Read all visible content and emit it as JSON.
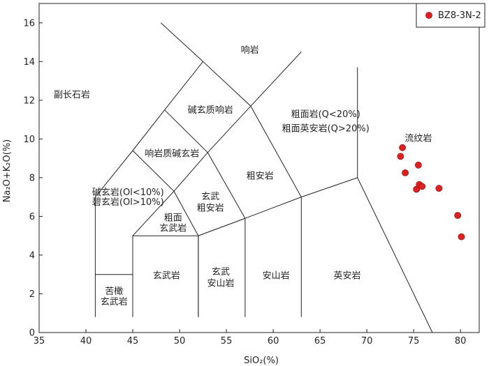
{
  "chart_data": {
    "type": "scatter",
    "title": "",
    "xlabel": "SiO₂(%)",
    "ylabel": "Na₂O+K₂O(%)",
    "xlim": [
      35,
      82
    ],
    "ylim": [
      0,
      17
    ],
    "xticks": [
      35,
      40,
      45,
      50,
      55,
      60,
      65,
      70,
      75,
      80
    ],
    "yticks": [
      0,
      2,
      4,
      6,
      8,
      10,
      12,
      14,
      16
    ],
    "grid": false,
    "legend_position": "top-right",
    "series": [
      {
        "name": "BZ8-3N-2",
        "color": "#e02020",
        "points": [
          {
            "x": 73.8,
            "y": 9.55
          },
          {
            "x": 73.6,
            "y": 9.1
          },
          {
            "x": 74.1,
            "y": 8.25
          },
          {
            "x": 75.5,
            "y": 8.65
          },
          {
            "x": 75.3,
            "y": 7.4
          },
          {
            "x": 75.6,
            "y": 7.65
          },
          {
            "x": 75.9,
            "y": 7.55
          },
          {
            "x": 77.7,
            "y": 7.45
          },
          {
            "x": 79.7,
            "y": 6.05
          },
          {
            "x": 80.1,
            "y": 4.95
          }
        ]
      }
    ],
    "boundaries": [
      [
        [
          41,
          0.8
        ],
        [
          41,
          3
        ],
        [
          45,
          3
        ],
        [
          45,
          0.8
        ]
      ],
      [
        [
          41,
          3
        ],
        [
          41,
          7
        ],
        [
          45,
          9.4
        ],
        [
          48.4,
          11.5
        ],
        [
          52.5,
          14
        ],
        [
          57.6,
          11.7
        ],
        [
          63,
          7
        ],
        [
          63,
          0.8
        ]
      ],
      [
        [
          45,
          0.8
        ],
        [
          45,
          5
        ],
        [
          52,
          5
        ],
        [
          52,
          0.8
        ]
      ],
      [
        [
          52,
          0.8
        ],
        [
          52,
          5
        ],
        [
          57,
          5.9
        ],
        [
          57,
          0.8
        ]
      ],
      [
        [
          45,
          5
        ],
        [
          49.4,
          7.3
        ],
        [
          53,
          9.3
        ],
        [
          57.6,
          11.7
        ]
      ],
      [
        [
          49.4,
          7.3
        ],
        [
          52,
          5
        ]
      ],
      [
        [
          53,
          9.3
        ],
        [
          57,
          5.9
        ]
      ],
      [
        [
          48.4,
          11.5
        ],
        [
          53,
          9.3
        ]
      ],
      [
        [
          45,
          9.4
        ],
        [
          49.4,
          7.3
        ]
      ],
      [
        [
          52,
          5
        ],
        [
          57,
          5.9
        ],
        [
          63,
          7
        ],
        [
          69,
          8
        ],
        [
          77,
          0
        ]
      ],
      [
        [
          69,
          8
        ],
        [
          69,
          13.7
        ]
      ],
      [
        [
          52.5,
          14
        ],
        [
          48,
          16
        ]
      ],
      [
        [
          57.6,
          11.7
        ],
        [
          63,
          14.5
        ]
      ]
    ],
    "field_labels": [
      {
        "text": "响岩",
        "x": 57.5,
        "y": 14.6
      },
      {
        "text": "副长石岩",
        "x": 38.5,
        "y": 12.3
      },
      {
        "text": "碱玄质响岩",
        "x": 53.3,
        "y": 11.5
      },
      {
        "text": "粗面岩(Q<20%)",
        "x": 65.6,
        "y": 11.3
      },
      {
        "text": "粗面英安岩(Q>20%)",
        "x": 65.6,
        "y": 10.55
      },
      {
        "text": "流纹岩",
        "x": 75.5,
        "y": 10.05
      },
      {
        "text": "响岩质碱玄岩",
        "x": 49.2,
        "y": 9.25
      },
      {
        "text": "粗安岩",
        "x": 58.6,
        "y": 8.1
      },
      {
        "text": "碱玄岩(Ol<10%)",
        "x": 44.5,
        "y": 7.25
      },
      {
        "text": "碧玄岩(Ol>10%)",
        "x": 44.5,
        "y": 6.75
      },
      {
        "text": "玄武",
        "x": 53.3,
        "y": 7.05
      },
      {
        "text": "粗安岩",
        "x": 53.3,
        "y": 6.45
      },
      {
        "text": "粗面",
        "x": 49.3,
        "y": 5.95
      },
      {
        "text": "玄武岩",
        "x": 49.3,
        "y": 5.4
      },
      {
        "text": "玄武岩",
        "x": 48.6,
        "y": 2.95
      },
      {
        "text": "玄武",
        "x": 54.4,
        "y": 3.15
      },
      {
        "text": "安山岩",
        "x": 54.4,
        "y": 2.55
      },
      {
        "text": "安山岩",
        "x": 60.3,
        "y": 2.95
      },
      {
        "text": "英安岩",
        "x": 67.9,
        "y": 2.95
      },
      {
        "text": "苦橄",
        "x": 43,
        "y": 2.15
      },
      {
        "text": "玄武岩",
        "x": 43,
        "y": 1.6
      }
    ]
  }
}
